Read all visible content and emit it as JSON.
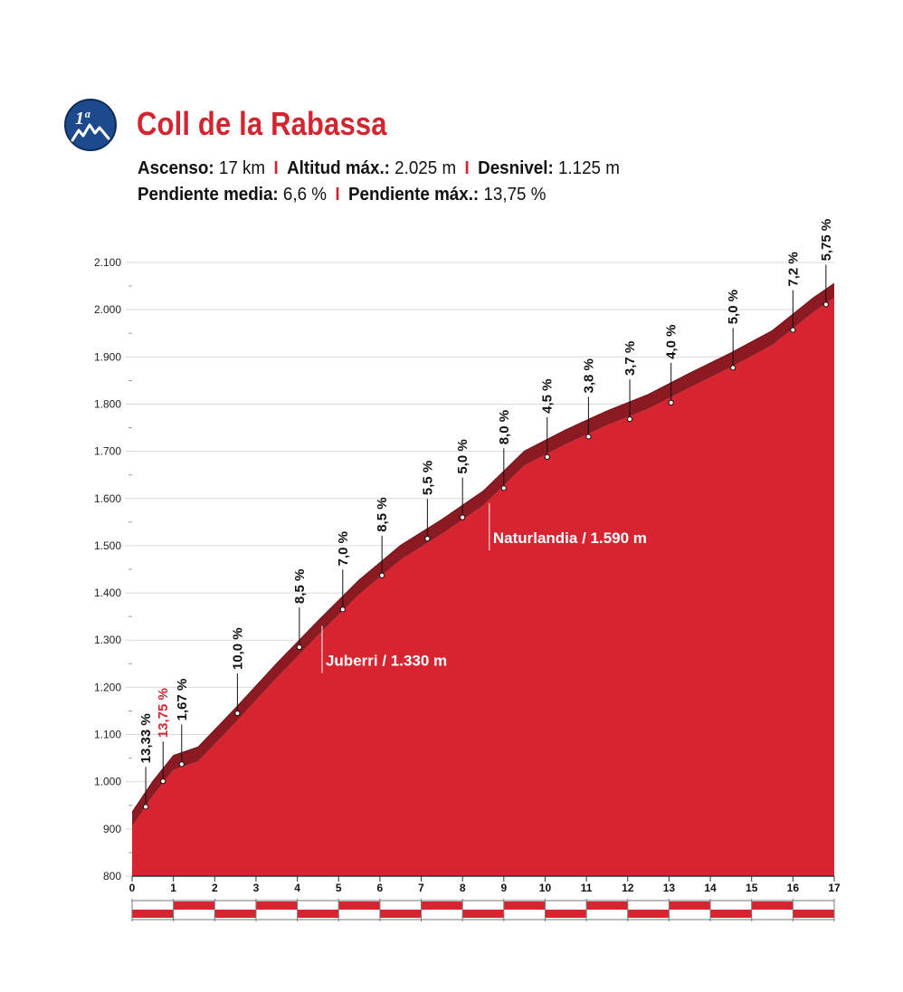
{
  "header": {
    "badge_text": "1ª",
    "badge_icon": "mountain-icon",
    "title": "Coll de la Rabassa",
    "stats_row1": [
      {
        "label": "Ascenso:",
        "value": "17 km"
      },
      {
        "label": "Altitud máx.:",
        "value": "2.025 m"
      },
      {
        "label": "Desnivel:",
        "value": "1.125 m"
      }
    ],
    "stats_row2": [
      {
        "label": "Pendiente media:",
        "value": "6,6 %"
      },
      {
        "label": "Pendiente máx.:",
        "value": "13,75 %"
      }
    ],
    "separator": "I"
  },
  "colors": {
    "profile_red": "#d62531",
    "profile_dark": "#8b1a22",
    "title_red": "#d3252f",
    "grid": "#d9d9d9"
  },
  "chart_data": {
    "type": "area",
    "title": "Coll de la Rabassa",
    "xlabel": "",
    "ylabel": "",
    "xlim": [
      0,
      17
    ],
    "ylim": [
      800,
      2100
    ],
    "x_ticks": [
      "0",
      "1",
      "2",
      "3",
      "4",
      "5",
      "6",
      "7",
      "8",
      "9",
      "10",
      "11",
      "12",
      "13",
      "14",
      "15",
      "16",
      "17"
    ],
    "y_ticks": [
      {
        "value": 800,
        "label": "800"
      },
      {
        "value": 900,
        "label": "900"
      },
      {
        "value": 1000,
        "label": "1.000"
      },
      {
        "value": 1100,
        "label": "1.100"
      },
      {
        "value": 1200,
        "label": "1.200"
      },
      {
        "value": 1300,
        "label": "1.300"
      },
      {
        "value": 1400,
        "label": "1.400"
      },
      {
        "value": 1500,
        "label": "1.500"
      },
      {
        "value": 1600,
        "label": "1.600"
      },
      {
        "value": 1700,
        "label": "1.700"
      },
      {
        "value": 1800,
        "label": "1.800"
      },
      {
        "value": 1900,
        "label": "1.900"
      },
      {
        "value": 2000,
        "label": "2.000"
      },
      {
        "value": 2100,
        "label": "2.100"
      }
    ],
    "grid": true,
    "profile": [
      {
        "x": 0,
        "y": 905
      },
      {
        "x": 0.5,
        "y": 970
      },
      {
        "x": 1.0,
        "y": 1025
      },
      {
        "x": 1.6,
        "y": 1043
      },
      {
        "x": 2.5,
        "y": 1125
      },
      {
        "x": 3.5,
        "y": 1220
      },
      {
        "x": 4.5,
        "y": 1310
      },
      {
        "x": 5.5,
        "y": 1397
      },
      {
        "x": 6.5,
        "y": 1470
      },
      {
        "x": 7.5,
        "y": 1525
      },
      {
        "x": 8.5,
        "y": 1585
      },
      {
        "x": 9.5,
        "y": 1670
      },
      {
        "x": 10.5,
        "y": 1715
      },
      {
        "x": 11.5,
        "y": 1755
      },
      {
        "x": 12.5,
        "y": 1790
      },
      {
        "x": 13.5,
        "y": 1835
      },
      {
        "x": 14.5,
        "y": 1878
      },
      {
        "x": 15.5,
        "y": 1925
      },
      {
        "x": 16.5,
        "y": 1995
      },
      {
        "x": 17.0,
        "y": 2025
      }
    ],
    "segment_grades": [
      {
        "x": 0.33,
        "y": 947,
        "label": "13,33 %",
        "highlight": false
      },
      {
        "x": 0.75,
        "y": 1001,
        "label": "13,75 %",
        "highlight": true
      },
      {
        "x": 1.2,
        "y": 1037,
        "label": "1,67 %",
        "highlight": false
      },
      {
        "x": 2.55,
        "y": 1145,
        "label": "10,0 %",
        "highlight": false
      },
      {
        "x": 4.05,
        "y": 1285,
        "label": "8,5 %",
        "highlight": false
      },
      {
        "x": 5.1,
        "y": 1365,
        "label": "7,0 %",
        "highlight": false
      },
      {
        "x": 6.05,
        "y": 1437,
        "label": "8,5 %",
        "highlight": false
      },
      {
        "x": 7.15,
        "y": 1515,
        "label": "5,5 %",
        "highlight": false
      },
      {
        "x": 8.0,
        "y": 1560,
        "label": "5,0 %",
        "highlight": false
      },
      {
        "x": 9.0,
        "y": 1622,
        "label": "8,0 %",
        "highlight": false
      },
      {
        "x": 10.05,
        "y": 1688,
        "label": "4,5 %",
        "highlight": false
      },
      {
        "x": 11.05,
        "y": 1731,
        "label": "3,8 %",
        "highlight": false
      },
      {
        "x": 12.05,
        "y": 1768,
        "label": "3,7 %",
        "highlight": false
      },
      {
        "x": 13.05,
        "y": 1803,
        "label": "4,0 %",
        "highlight": false
      },
      {
        "x": 14.55,
        "y": 1877,
        "label": "5,0 %",
        "highlight": false
      },
      {
        "x": 16.0,
        "y": 1957,
        "label": "7,2 %",
        "highlight": false
      },
      {
        "x": 16.8,
        "y": 2011,
        "label": "5,75 %",
        "highlight": false
      }
    ],
    "places": [
      {
        "x": 4.6,
        "y": 1330,
        "label": "Juberri / 1.330 m"
      },
      {
        "x": 8.65,
        "y": 1590,
        "label": "Naturlandia / 1.590 m"
      }
    ]
  }
}
